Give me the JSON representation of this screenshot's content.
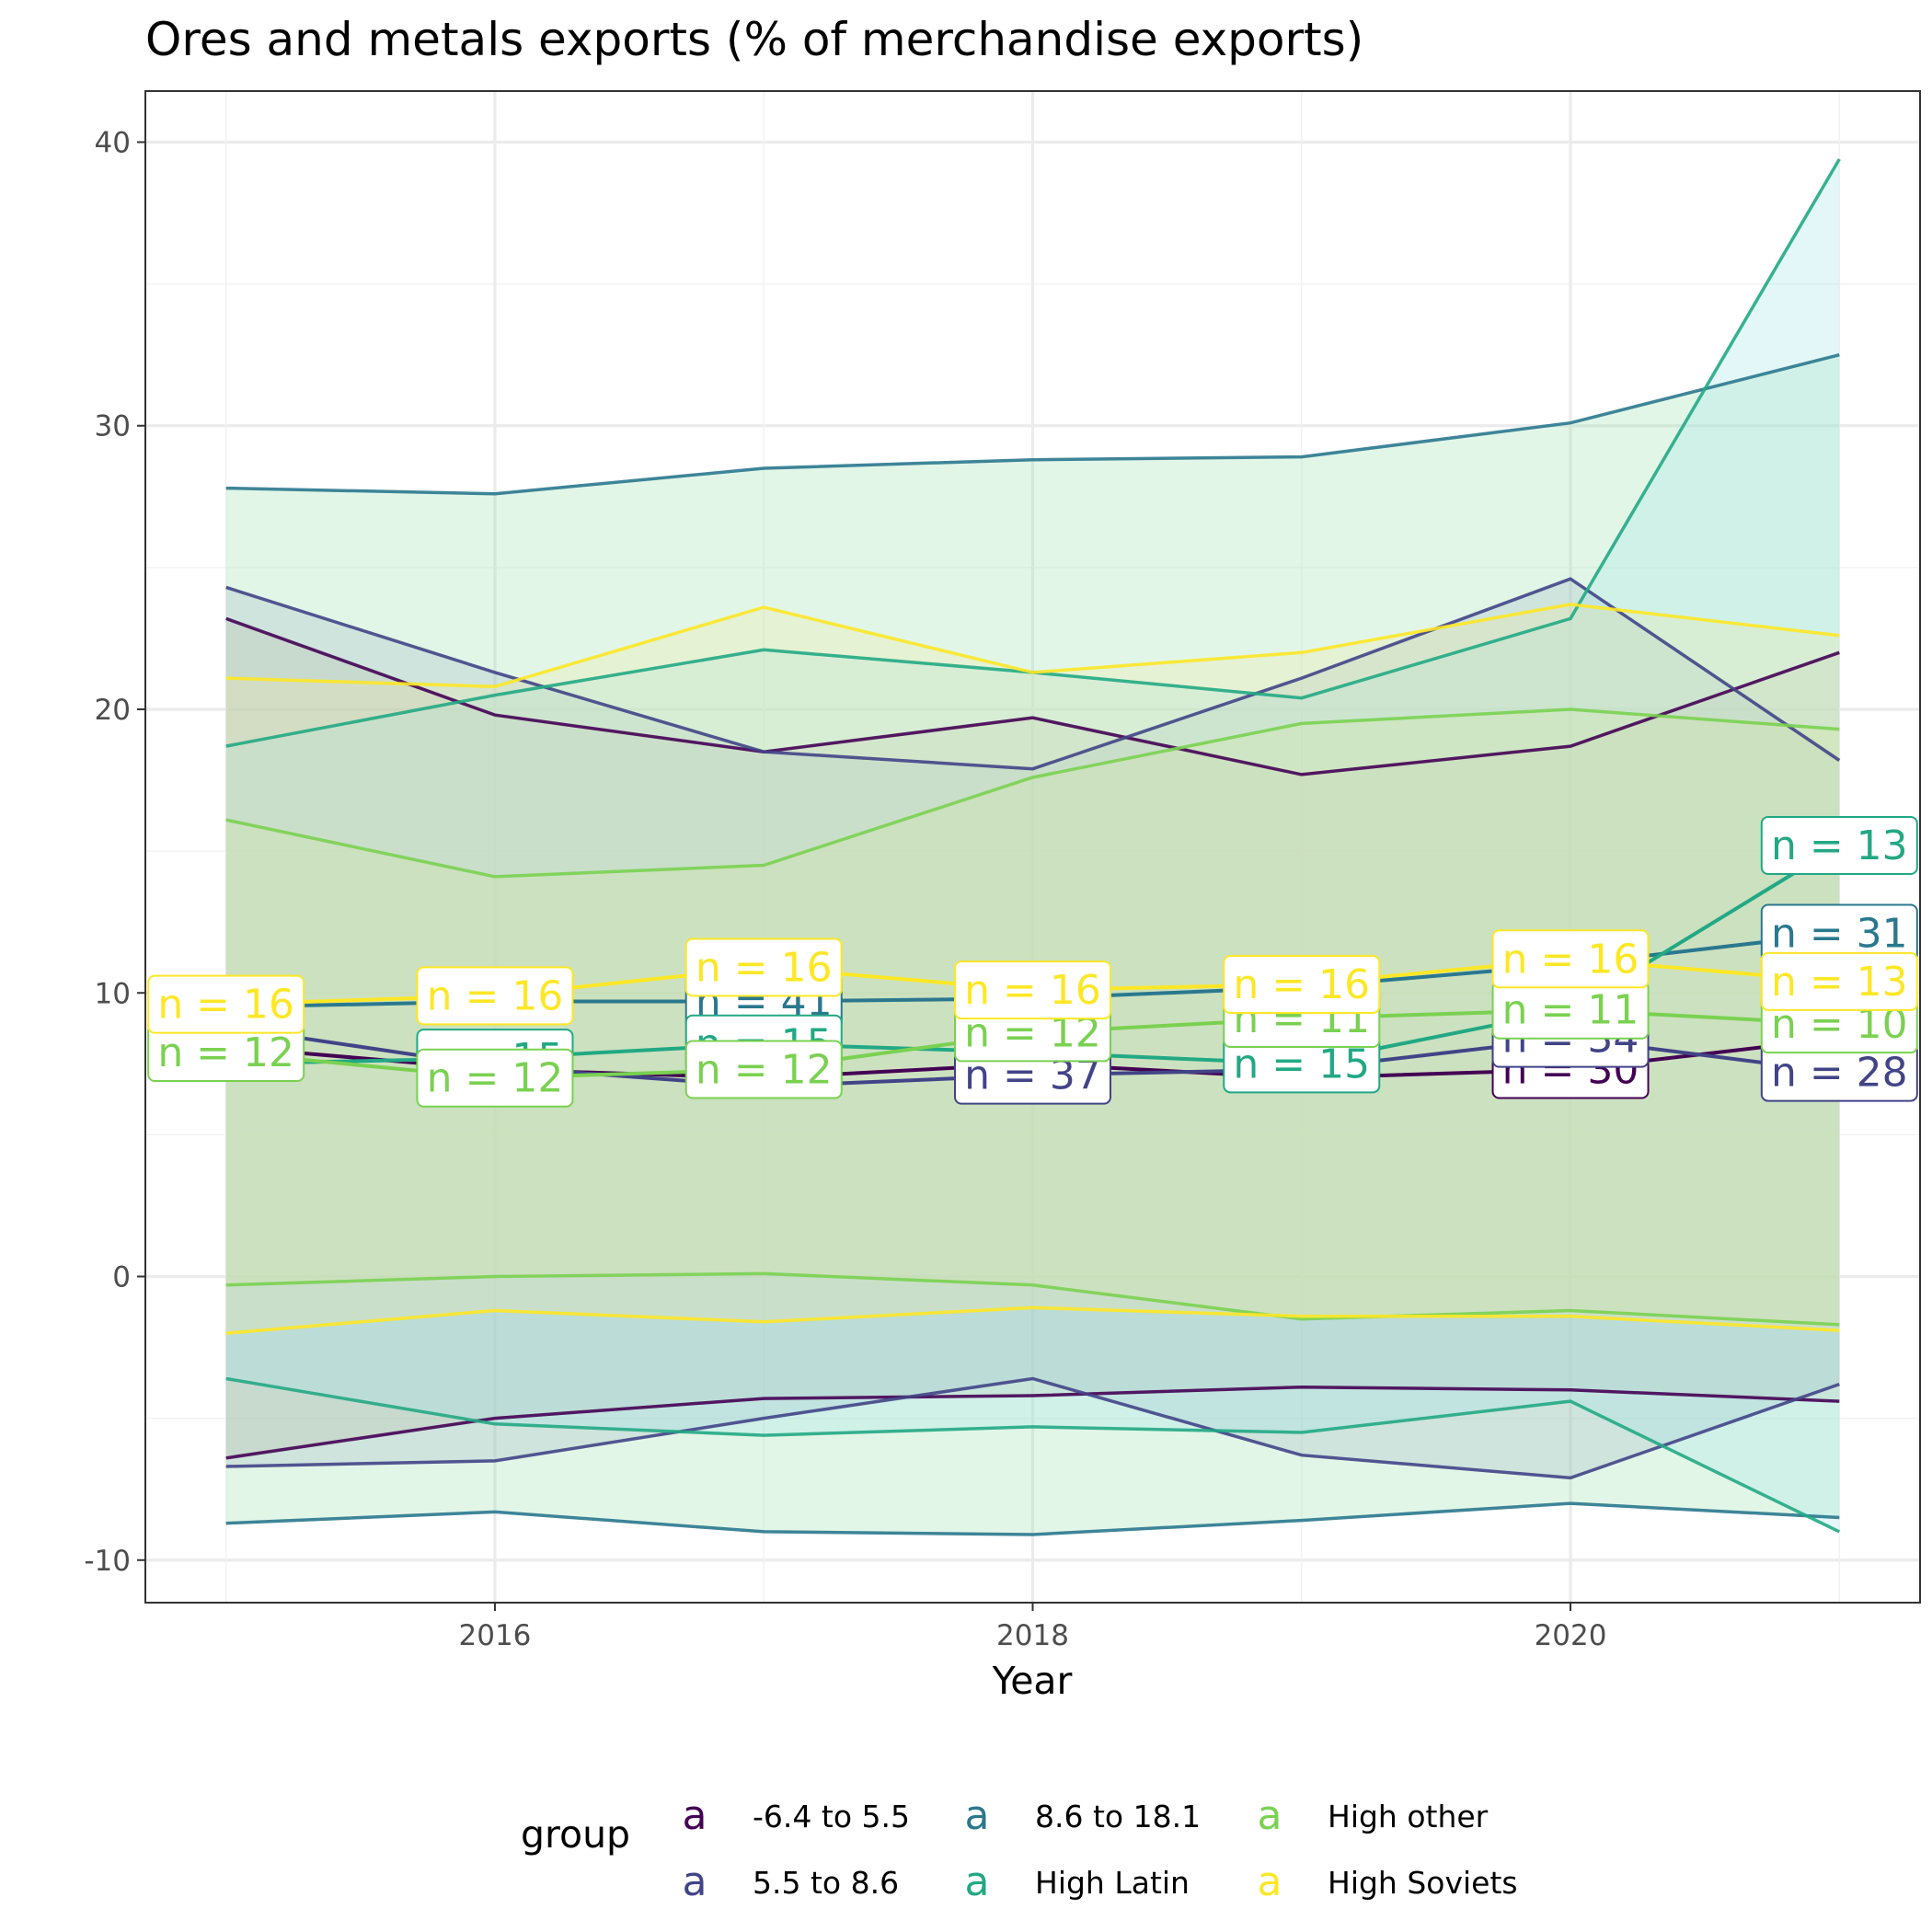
{
  "chart_data": {
    "type": "line",
    "title": "Ores and metals exports (% of merchandise exports)",
    "subtitle": "",
    "xlabel": "Year",
    "ylabel": "",
    "x": [
      2015,
      2016,
      2017,
      2018,
      2019,
      2020,
      2021
    ],
    "x_ticks": [
      2016,
      2018,
      2020
    ],
    "y_ticks": [
      -10,
      0,
      10,
      20,
      30,
      40
    ],
    "xlim": [
      2014.7,
      2021.3
    ],
    "ylim": [
      -11.5,
      41.8
    ],
    "grid": true,
    "legend": {
      "title": "group",
      "position": "bottom",
      "key_glyph": "a",
      "layout_order": [
        "-6.4 to 5.5",
        "5.5 to 8.6",
        "8.6 to 18.1",
        "High Latin",
        "High other",
        "High Soviets"
      ]
    },
    "series": [
      {
        "name": "-6.4 to 5.5",
        "color": "#440154",
        "upper": [
          23.2,
          19.8,
          18.5,
          19.7,
          17.7,
          18.7,
          22.0
        ],
        "mean": [
          8.1,
          7.3,
          7.0,
          7.5,
          7.0,
          7.3,
          8.4
        ],
        "lower": [
          -6.4,
          -5.0,
          -4.3,
          -4.2,
          -3.9,
          -4.0,
          -4.4
        ],
        "n": [
          null,
          null,
          null,
          null,
          null,
          "30",
          null
        ]
      },
      {
        "name": "5.5 to 8.6",
        "color": "#414487",
        "upper": [
          24.3,
          21.3,
          18.5,
          17.9,
          21.1,
          24.6,
          18.2
        ],
        "mean": [
          8.8,
          7.4,
          6.7,
          7.1,
          7.3,
          8.4,
          7.2
        ],
        "lower": [
          -6.7,
          -6.5,
          -5.0,
          -3.6,
          -6.3,
          -7.1,
          -3.8
        ],
        "n": [
          null,
          null,
          null,
          "37",
          null,
          "34",
          "28"
        ]
      },
      {
        "name": "8.6 to 18.1",
        "color": "#2A788E",
        "upper": [
          27.8,
          27.6,
          28.5,
          28.8,
          28.9,
          30.1,
          32.5
        ],
        "mean": [
          9.5,
          9.7,
          9.7,
          9.8,
          10.2,
          11.0,
          12.1
        ],
        "lower": [
          -8.7,
          -8.3,
          -9.0,
          -9.1,
          -8.6,
          -8.0,
          -8.5
        ],
        "n": [
          null,
          null,
          "41",
          null,
          null,
          null,
          "31"
        ]
      },
      {
        "name": "High Latin",
        "color": "#22A884",
        "upper": [
          18.7,
          20.5,
          22.1,
          21.3,
          20.4,
          23.2,
          39.4
        ],
        "mean": [
          7.5,
          7.7,
          8.2,
          7.9,
          7.5,
          9.4,
          15.2
        ],
        "lower": [
          -3.6,
          -5.2,
          -5.6,
          -5.3,
          -5.5,
          -4.4,
          -9.0
        ],
        "n": [
          null,
          "15",
          "15",
          null,
          "15",
          null,
          "13"
        ]
      },
      {
        "name": "High other",
        "color": "#7AD151",
        "upper": [
          16.1,
          14.1,
          14.5,
          17.6,
          19.5,
          20.0,
          19.3
        ],
        "mean": [
          7.9,
          7.0,
          7.3,
          8.6,
          9.1,
          9.4,
          8.9
        ],
        "lower": [
          -0.3,
          0.0,
          0.1,
          -0.3,
          -1.5,
          -1.2,
          -1.7
        ],
        "n": [
          "12",
          "12",
          "12",
          "12",
          "11",
          "11",
          "10"
        ]
      },
      {
        "name": "High Soviets",
        "color": "#FDE725",
        "upper": [
          21.1,
          20.8,
          23.6,
          21.3,
          22.0,
          23.7,
          22.6
        ],
        "mean": [
          9.6,
          9.9,
          10.9,
          10.1,
          10.3,
          11.2,
          10.4
        ],
        "lower": [
          -2.0,
          -1.2,
          -1.6,
          -1.1,
          -1.4,
          -1.4,
          -1.9
        ],
        "n": [
          "16",
          "16",
          "16",
          "16",
          "16",
          "16",
          "13"
        ]
      }
    ]
  }
}
